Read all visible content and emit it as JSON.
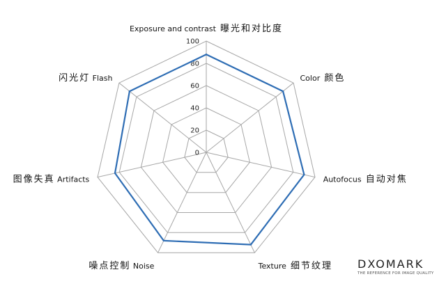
{
  "chart_data": {
    "type": "radar",
    "axes": [
      {
        "en": "Exposure and contrast",
        "cn": "曝光和对比度"
      },
      {
        "en": "Color",
        "cn": "颜色"
      },
      {
        "en": "Autofocus",
        "cn": "自动对焦"
      },
      {
        "en": "Texture",
        "cn": "细节纹理"
      },
      {
        "en": "Noise",
        "cn": "噪点控制",
        "cn_first": true
      },
      {
        "en": "Artifacts",
        "cn": "图像失真",
        "cn_first": true
      },
      {
        "en": "Flash",
        "cn": "闪光灯",
        "cn_first": true
      }
    ],
    "ticks": [
      "0",
      "20",
      "40",
      "60",
      "80",
      "100"
    ],
    "rlim": [
      0,
      100
    ],
    "values": [
      88,
      88,
      90,
      92,
      88,
      84,
      88
    ],
    "line_color": "#2e6db4",
    "grid_color": "#a6a6a6"
  },
  "logo": {
    "word": "DXOMARK",
    "tagline": "THE REFERENCE FOR IMAGE QUALITY"
  }
}
